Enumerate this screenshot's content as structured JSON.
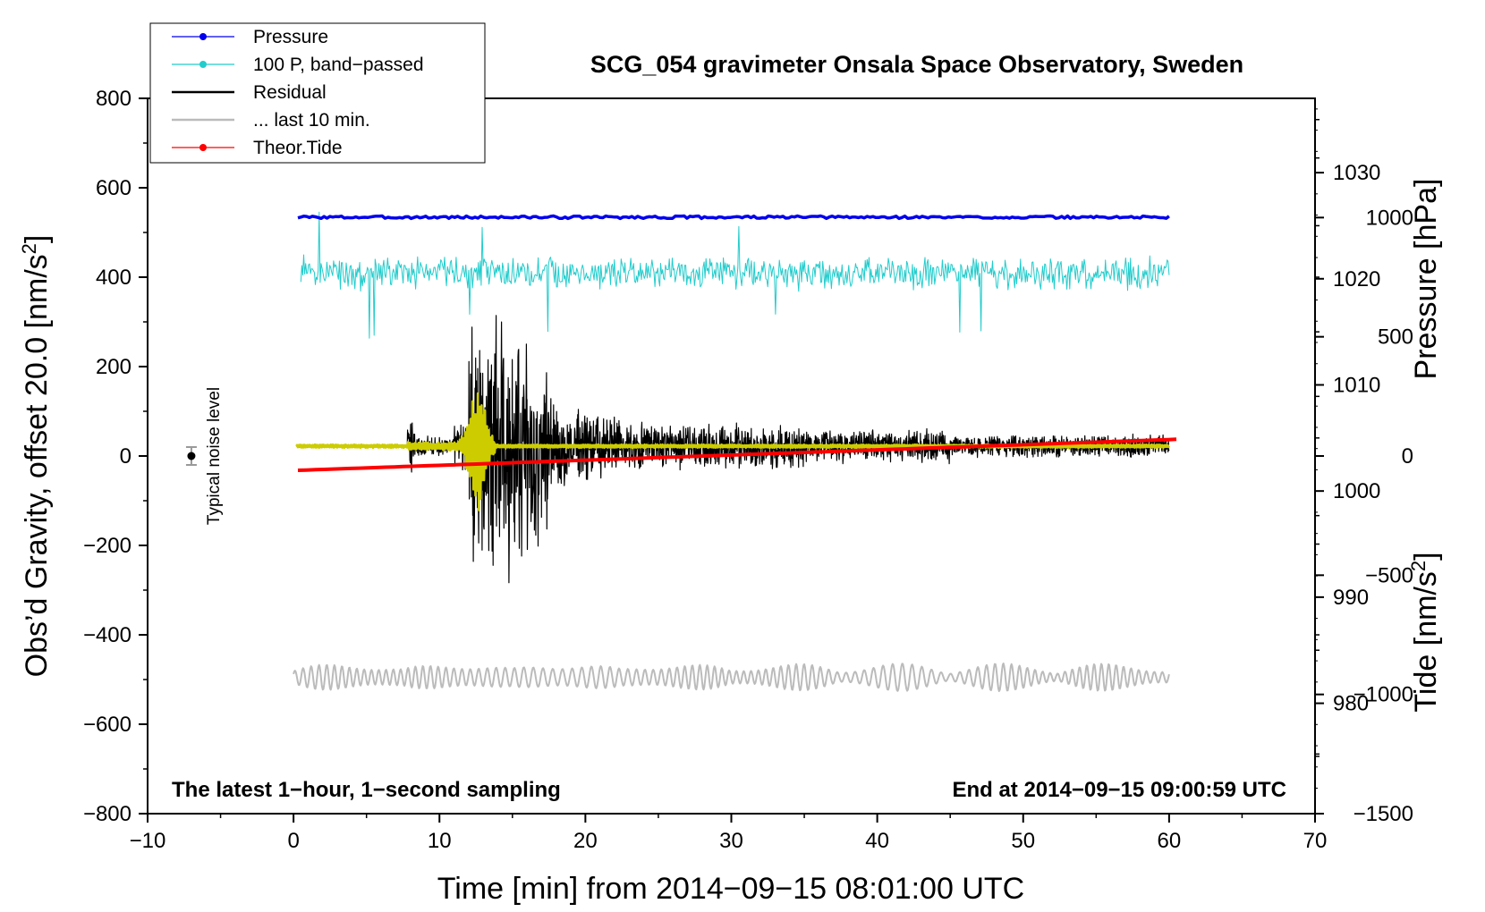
{
  "chart_data": {
    "type": "line",
    "title": "SCG_054 gravimeter Onsala Space Observatory, Sweden",
    "xlabel": "Time [min] from 2014−09−15 08:01:00 UTC",
    "ylabel": "Obs’d Gravity, offset 20.0 [nm/s",
    "ylabel_sup": "2",
    "ylabel_close": "]",
    "right_top_label": "Pressure [hPa]",
    "right_bottom_label": "Tide [nm/s",
    "right_bottom_sup": "2",
    "right_bottom_close": "]",
    "xlim": [
      -10,
      70
    ],
    "ylim": [
      -800,
      800
    ],
    "x_ticks": [
      -10,
      0,
      10,
      20,
      30,
      40,
      50,
      60,
      70
    ],
    "x_tick_labels": [
      "−10",
      "0",
      "10",
      "20",
      "30",
      "40",
      "50",
      "60",
      "70"
    ],
    "y_ticks": [
      800,
      600,
      400,
      200,
      0,
      -200,
      -400,
      -600,
      -800
    ],
    "y_tick_labels": [
      "800",
      "600",
      "400",
      "200",
      "0",
      "−200",
      "−400",
      "−600",
      "−800"
    ],
    "pressure_axis": {
      "range": [
        969.6,
        1037.0
      ],
      "ticks": [
        1030,
        1020,
        1010,
        1000,
        990,
        980
      ],
      "tick_labels": [
        "1030",
        "1020",
        "1010",
        "1000",
        "990",
        "980"
      ]
    },
    "tide_axis": {
      "range": [
        -1500,
        1500
      ],
      "ticks": [
        1000,
        500,
        0,
        -500,
        -1000,
        -1500
      ],
      "tick_labels": [
        "1000",
        "500",
        "0",
        "−500",
        "−1000",
        "−1500"
      ]
    },
    "footer_left": "The latest 1−hour, 1−second sampling",
    "footer_right": "End at 2014−09−15 09:00:59 UTC",
    "noise_label": "Typical noise level",
    "noise_marker": {
      "x": -7,
      "y": 0,
      "error": 20
    },
    "grid": false,
    "legend_position": "top-left",
    "legend": [
      {
        "name": "Pressure",
        "color": "#0000ee",
        "marker": true
      },
      {
        "name": "100 P, band−passed",
        "color": "#22cccc",
        "marker": true
      },
      {
        "name": "Residual",
        "color": "#000000",
        "marker": false
      },
      {
        "name": "... last 10 min.",
        "color": "#bbbbbb",
        "marker": false
      },
      {
        "name": "Theor.Tide",
        "color": "#ff0000",
        "marker": true
      }
    ],
    "series": [
      {
        "name": "Pressure",
        "color": "#0000ee",
        "axis": "pressure",
        "x": [
          0.3,
          60
        ],
        "values": [
          1025.8,
          1025.8
        ]
      },
      {
        "name": "100 P, band−passed",
        "color": "#22cccc",
        "axis": "gravity",
        "x_range": [
          0.5,
          60
        ],
        "baseline": 410,
        "amplitude": 35
      },
      {
        "name": "Residual",
        "color": "#000000",
        "axis": "gravity",
        "x_range": [
          0.2,
          60
        ],
        "baseline": 22
      },
      {
        "name": "Residual band−passed",
        "color": "#cccc00",
        "axis": "gravity",
        "x_range": [
          0.2,
          60
        ],
        "baseline": 22
      },
      {
        "name": "... last 10 min.",
        "color": "#bbbbbb",
        "axis": "gravity",
        "x_range": [
          0,
          60
        ],
        "baseline": -495,
        "amplitude": 25
      },
      {
        "name": "Theor.Tide",
        "color": "#ff0000",
        "axis": "tide",
        "x": [
          0.3,
          60.5
        ],
        "values": [
          -60,
          70
        ]
      }
    ]
  }
}
